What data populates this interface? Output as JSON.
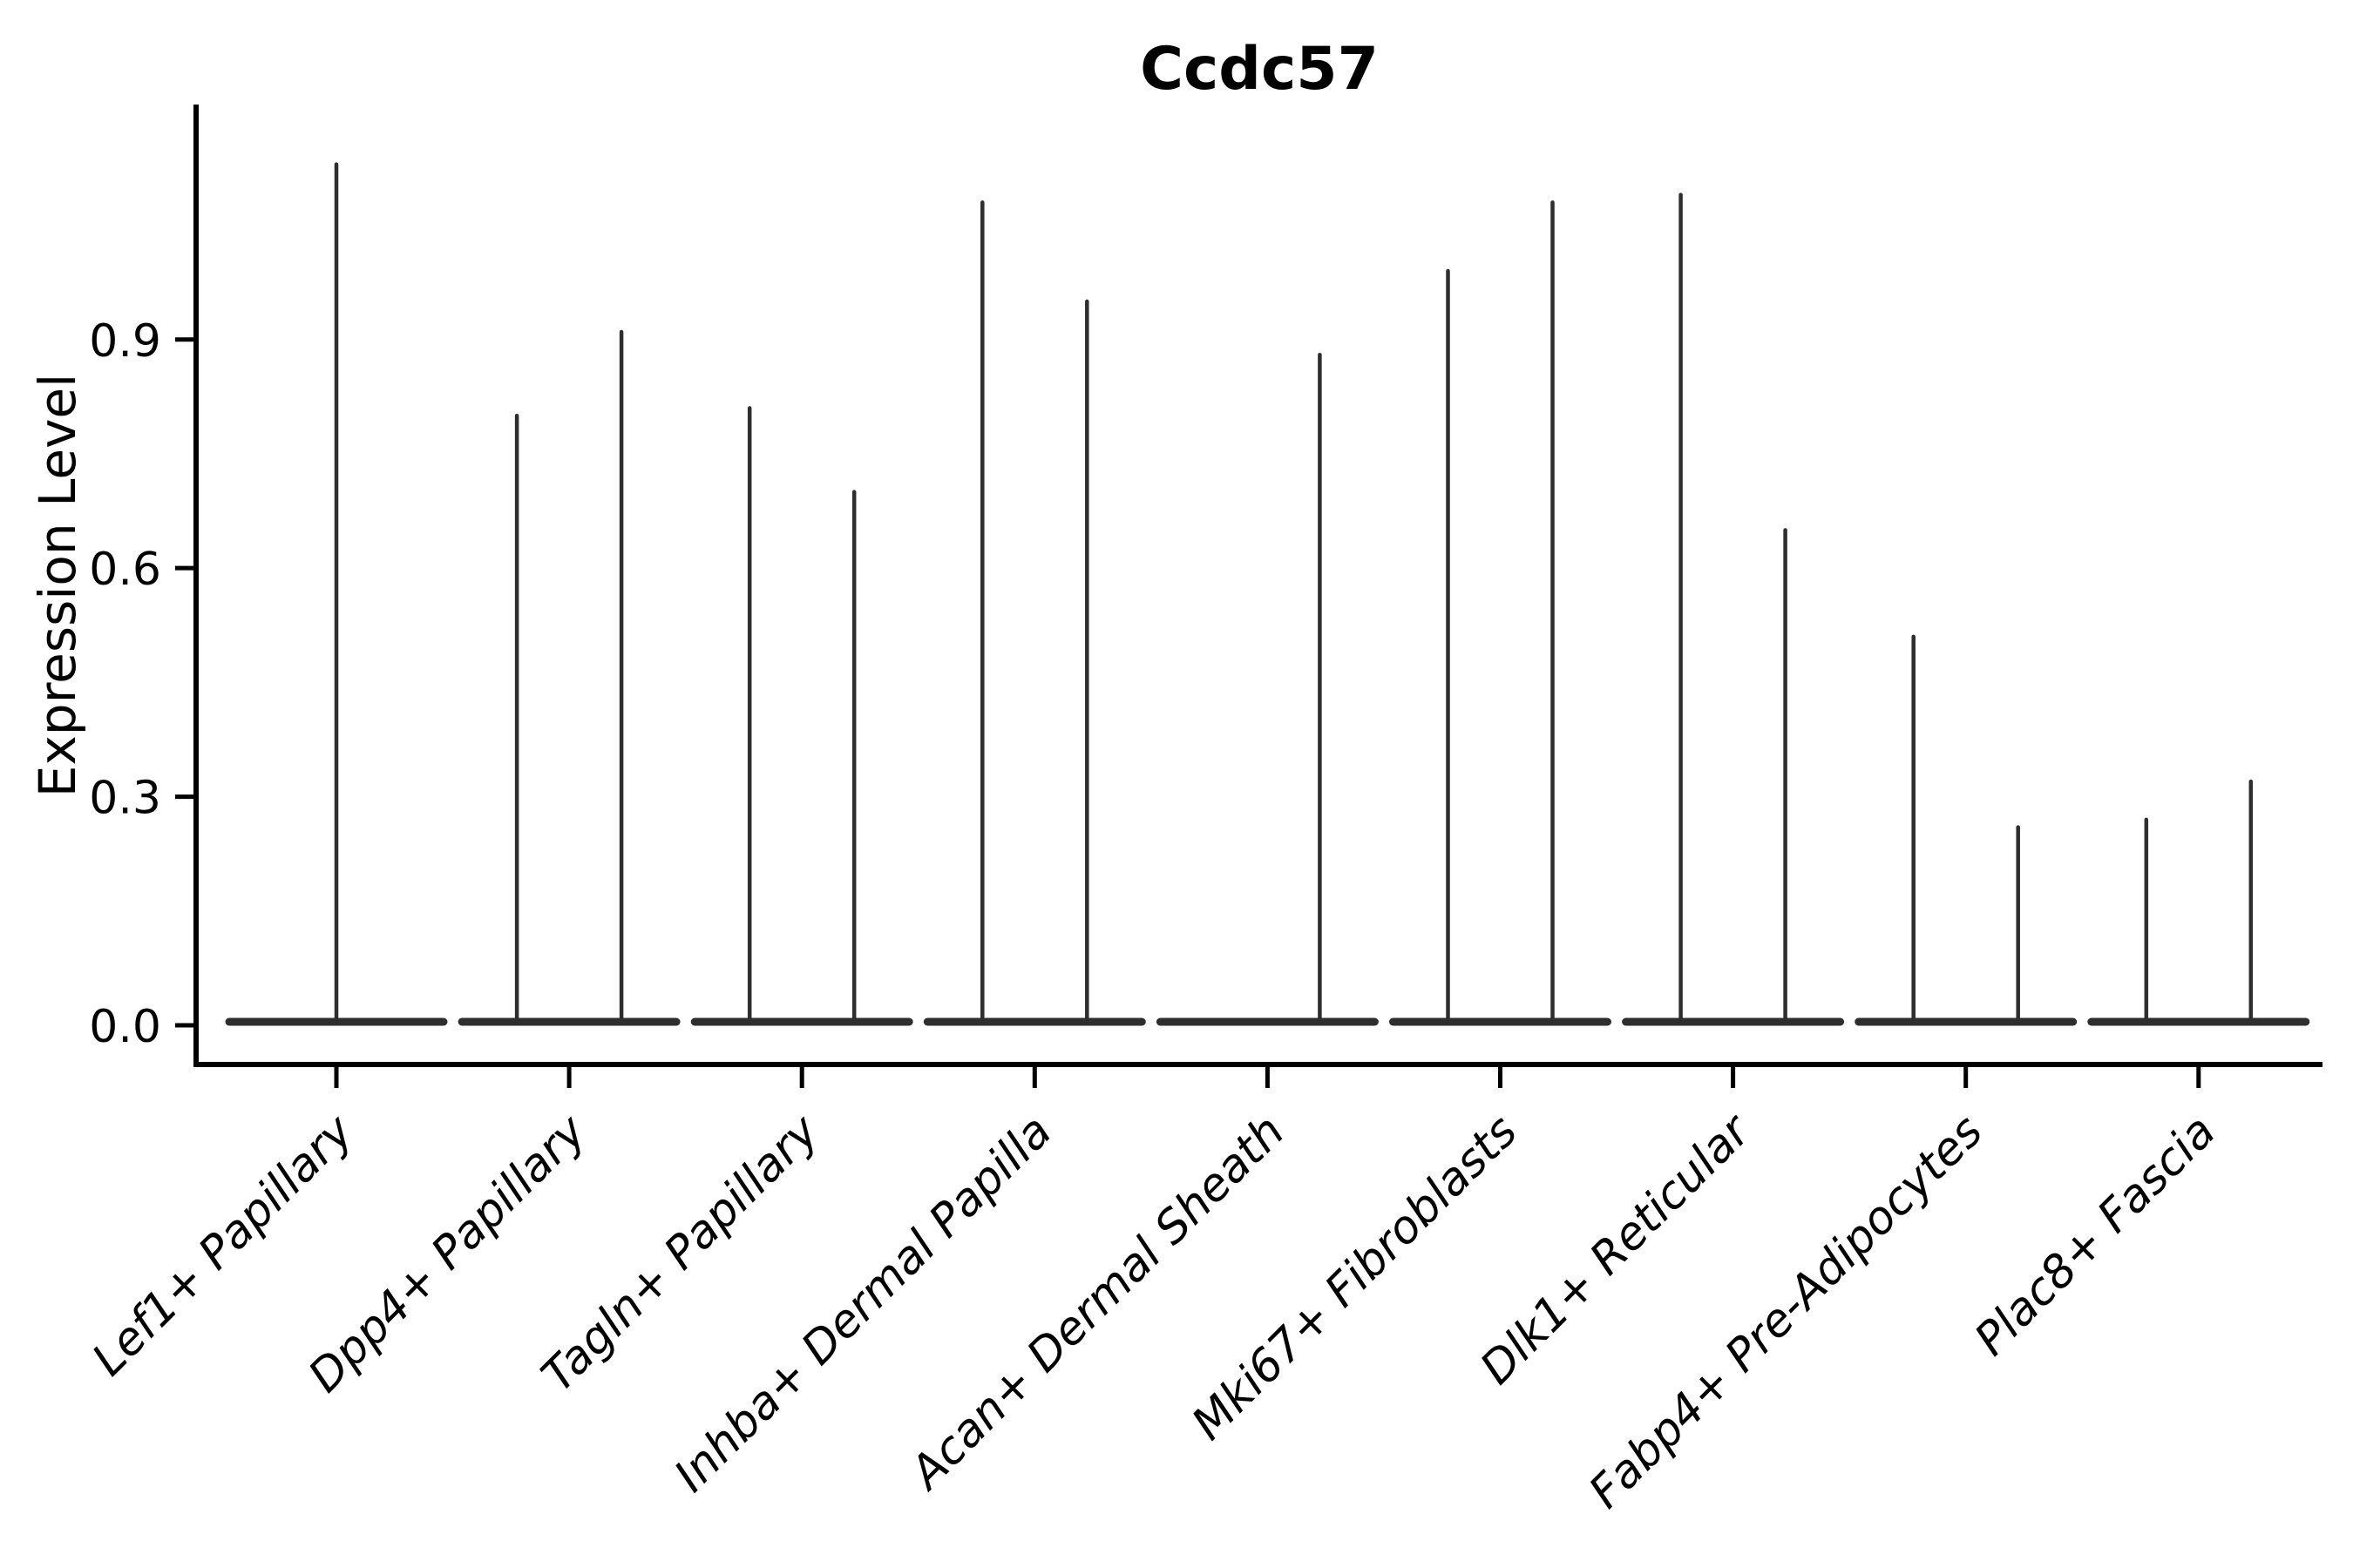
{
  "page": {
    "background": "#ffffff"
  },
  "header": {
    "title": "Ccdc57"
  },
  "chart_data": {
    "type": "violin",
    "title": "Ccdc57",
    "ylabel": "Expression Level",
    "xlabel": "",
    "ylim": [
      0,
      1.21
    ],
    "ytick_values": [
      0.0,
      0.3,
      0.6,
      0.9
    ],
    "ytick_labels": [
      "0.0",
      "0.3",
      "0.6",
      "0.9"
    ],
    "grid": false,
    "legend": null,
    "x_tick_rotation_deg": 45,
    "x_tick_style": "italic",
    "categories": [
      "Lef1+ Papillary",
      "Dpp4+ Papillary",
      "Tagln+ Papillary",
      "Inhba+ Dermal Papilla",
      "Acan+ Dermal Sheath",
      "Mki67+ Fibroblasts",
      "Dlk1+ Reticular",
      "Fabp4+ Pre-Adipocytes",
      "Plac8+ Fascia"
    ],
    "violins": [
      {
        "category": "Lef1+ Papillary",
        "spikes": [
          {
            "position": "center",
            "max_expression": 1.13
          }
        ]
      },
      {
        "category": "Dpp4+ Papillary",
        "spikes": [
          {
            "position": "left",
            "max_expression": 0.8
          },
          {
            "position": "right",
            "max_expression": 0.91
          }
        ]
      },
      {
        "category": "Tagln+ Papillary",
        "spikes": [
          {
            "position": "left",
            "max_expression": 0.81
          },
          {
            "position": "right",
            "max_expression": 0.7
          }
        ]
      },
      {
        "category": "Inhba+ Dermal Papilla",
        "spikes": [
          {
            "position": "left",
            "max_expression": 1.08
          },
          {
            "position": "right",
            "max_expression": 0.95
          }
        ]
      },
      {
        "category": "Acan+ Dermal Sheath",
        "spikes": [
          {
            "position": "right",
            "max_expression": 0.88
          }
        ]
      },
      {
        "category": "Mki67+ Fibroblasts",
        "spikes": [
          {
            "position": "left",
            "max_expression": 0.99
          },
          {
            "position": "right",
            "max_expression": 1.08
          }
        ]
      },
      {
        "category": "Dlk1+ Reticular",
        "spikes": [
          {
            "position": "left",
            "max_expression": 1.09
          },
          {
            "position": "right",
            "max_expression": 0.65
          }
        ]
      },
      {
        "category": "Fabp4+ Pre-Adipocytes",
        "spikes": [
          {
            "position": "left",
            "max_expression": 0.51
          },
          {
            "position": "right",
            "max_expression": 0.26
          }
        ]
      },
      {
        "category": "Plac8+ Fascia",
        "spikes": [
          {
            "position": "left",
            "max_expression": 0.27
          },
          {
            "position": "right",
            "max_expression": 0.32
          }
        ]
      }
    ],
    "baseline_value": 0.0,
    "colors": {
      "violin": "#2e2e2e",
      "axis": "#000000",
      "text": "#000000",
      "background": "#ffffff"
    }
  }
}
